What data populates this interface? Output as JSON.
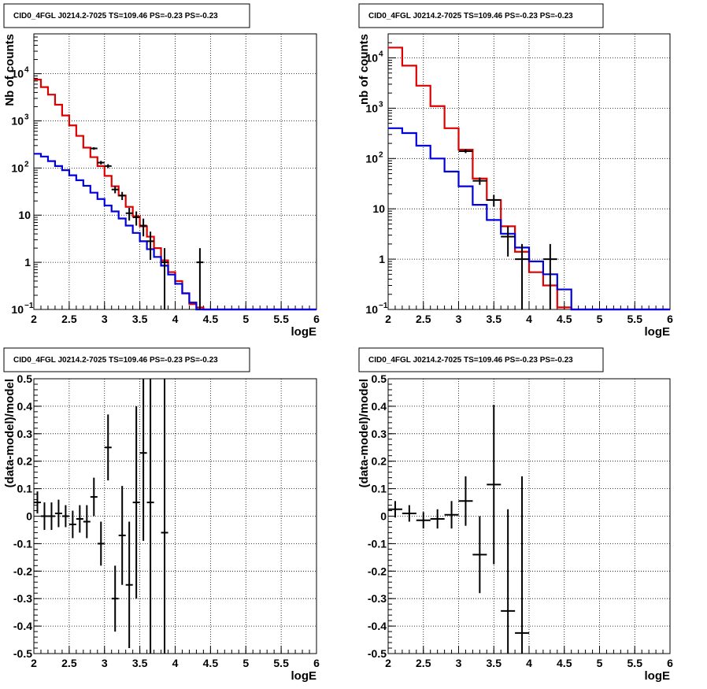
{
  "chart_data": [
    {
      "type": "line",
      "title": "CID0_4FGL J0214.2-7025 TS=109.46 PS=-0.23 PS=-0.23",
      "xlabel": "logE",
      "ylabel": "Nb of counts",
      "xlim": [
        2,
        6
      ],
      "ylim": [
        0.1,
        70000
      ],
      "log_y": true,
      "grid": true,
      "x_ticks": [
        "2",
        "2.5",
        "3",
        "3.5",
        "4",
        "4.5",
        "5",
        "5.5",
        "6"
      ],
      "y_ticks": [
        {
          "v": 0.1,
          "b": "10",
          "e": "−1"
        },
        {
          "v": 1,
          "b": "1",
          "e": ""
        },
        {
          "v": 10,
          "b": "10",
          "e": ""
        },
        {
          "v": 100,
          "b": "10",
          "e": "2"
        },
        {
          "v": 1000,
          "b": "10",
          "e": "3"
        },
        {
          "v": 10000,
          "b": "10",
          "e": "4"
        }
      ],
      "bin_edges": [
        2,
        2.1,
        2.2,
        2.3,
        2.4,
        2.5,
        2.6,
        2.7,
        2.8,
        2.9,
        3,
        3.1,
        3.2,
        3.3,
        3.4,
        3.5,
        3.6,
        3.7,
        3.8,
        3.9,
        4,
        4.1,
        4.2,
        4.3,
        4.4,
        4.5,
        4.6,
        4.7,
        4.8,
        4.9,
        5,
        5.1,
        5.2,
        5.3,
        5.4,
        5.5,
        5.6,
        5.7,
        5.8,
        5.9,
        6
      ],
      "series": [
        {
          "kind": "step",
          "color": "#dd0000",
          "values": [
            7500,
            5200,
            3600,
            2200,
            1300,
            800,
            480,
            270,
            170,
            110,
            68,
            41,
            26,
            15,
            9.5,
            5.8,
            3.5,
            2,
            1.1,
            0.62,
            0.4,
            0.22,
            0.13,
            0.11,
            0.1,
            0.1,
            0.1,
            0.1,
            0.1,
            0.1,
            0.1,
            0.1,
            0.1,
            0.1,
            0.1,
            0.1,
            0.1,
            0.1,
            0.1,
            0.1
          ]
        },
        {
          "kind": "step",
          "color": "#0000dd",
          "values": [
            200,
            175,
            140,
            110,
            90,
            70,
            55,
            42,
            30,
            22,
            16,
            12,
            8.5,
            6,
            4.2,
            2.8,
            1.9,
            1.3,
            0.85,
            0.55,
            0.35,
            0.22,
            0.14,
            0.1,
            0.1,
            0.1,
            0.1,
            0.1,
            0.1,
            0.1,
            0.1,
            0.1,
            0.1,
            0.1,
            0.1,
            0.1,
            0.1,
            0.1,
            0.1,
            0.1
          ]
        },
        {
          "kind": "points",
          "color": "#000000",
          "points": [
            {
              "x": 2.85,
              "y": 260
            },
            {
              "x": 2.95,
              "y": 130
            },
            {
              "x": 3.05,
              "y": 110
            },
            {
              "x": 3.15,
              "y": 35
            },
            {
              "x": 3.25,
              "y": 26
            },
            {
              "x": 3.35,
              "y": 11
            },
            {
              "x": 3.45,
              "y": 9
            },
            {
              "x": 3.55,
              "y": 6
            },
            {
              "x": 3.65,
              "y": 2.8
            },
            {
              "x": 3.85,
              "y": 1
            },
            {
              "x": 4.35,
              "y": 1
            }
          ]
        }
      ]
    },
    {
      "type": "line",
      "title": "CID0_4FGL J0214.2-7025 TS=109.46 PS=-0.23 PS=-0.23",
      "xlabel": "logE",
      "ylabel": "nb of counts",
      "xlim": [
        2,
        6
      ],
      "ylim": [
        0.1,
        30000
      ],
      "log_y": true,
      "grid": true,
      "x_ticks": [
        "2",
        "2.5",
        "3",
        "3.5",
        "4",
        "4.5",
        "5",
        "5.5",
        "6"
      ],
      "y_ticks": [
        {
          "v": 0.1,
          "b": "10",
          "e": "−1"
        },
        {
          "v": 1,
          "b": "1",
          "e": ""
        },
        {
          "v": 10,
          "b": "10",
          "e": ""
        },
        {
          "v": 100,
          "b": "10",
          "e": "2"
        },
        {
          "v": 1000,
          "b": "10",
          "e": "3"
        },
        {
          "v": 10000,
          "b": "10",
          "e": "4"
        }
      ],
      "bin_edges": [
        2,
        2.2,
        2.4,
        2.6,
        2.8,
        3,
        3.2,
        3.4,
        3.6,
        3.8,
        4,
        4.2,
        4.4,
        4.6,
        4.8,
        5,
        5.2,
        5.4,
        5.6,
        5.8,
        6
      ],
      "series": [
        {
          "kind": "step",
          "color": "#dd0000",
          "values": [
            16000,
            7000,
            2800,
            1100,
            400,
            150,
            40,
            15,
            4.5,
            1.4,
            0.55,
            0.3,
            0.11,
            0.1,
            0.1,
            0.1,
            0.1,
            0.1,
            0.1,
            0.1
          ]
        },
        {
          "kind": "step",
          "color": "#0000dd",
          "values": [
            400,
            320,
            180,
            100,
            55,
            28,
            12,
            6,
            3.2,
            1.7,
            0.9,
            0.5,
            0.25,
            0.1,
            0.1,
            0.1,
            0.1,
            0.1,
            0.1,
            0.1
          ]
        },
        {
          "kind": "points",
          "color": "#000000",
          "points": [
            {
              "x": 3.1,
              "y": 140
            },
            {
              "x": 3.3,
              "y": 36
            },
            {
              "x": 3.5,
              "y": 15
            },
            {
              "x": 3.7,
              "y": 2.8
            },
            {
              "x": 3.9,
              "y": 1
            },
            {
              "x": 4.3,
              "y": 1
            }
          ]
        }
      ]
    },
    {
      "type": "scatter",
      "title": "CID0_4FGL J0214.2-7025 TS=109.46 PS=-0.23 PS=-0.23",
      "xlabel": "logE",
      "ylabel": "(data-model)/model",
      "xlim": [
        2,
        6
      ],
      "ylim": [
        -0.5,
        0.5
      ],
      "log_y": false,
      "grid": true,
      "x_ticks": [
        "2",
        "2.5",
        "3",
        "3.5",
        "4",
        "4.5",
        "5",
        "5.5",
        "6"
      ],
      "y_ticks": [
        "-0.5",
        "-0.4",
        "-0.3",
        "-0.2",
        "-0.1",
        "0",
        "0.1",
        "0.2",
        "0.3",
        "0.4",
        "0.5"
      ],
      "series": [
        {
          "kind": "errorbars",
          "color": "#000000",
          "points": [
            {
              "x": 2.05,
              "y": 0.05,
              "err": 0.04
            },
            {
              "x": 2.15,
              "y": 0.0,
              "err": 0.05
            },
            {
              "x": 2.25,
              "y": 0.0,
              "err": 0.05
            },
            {
              "x": 2.35,
              "y": 0.01,
              "err": 0.05
            },
            {
              "x": 2.45,
              "y": 0.0,
              "err": 0.04
            },
            {
              "x": 2.55,
              "y": -0.03,
              "err": 0.05
            },
            {
              "x": 2.65,
              "y": -0.01,
              "err": 0.05
            },
            {
              "x": 2.75,
              "y": -0.02,
              "err": 0.06
            },
            {
              "x": 2.85,
              "y": 0.07,
              "err": 0.07
            },
            {
              "x": 2.95,
              "y": -0.1,
              "err": 0.08
            },
            {
              "x": 3.05,
              "y": 0.25,
              "err": 0.12
            },
            {
              "x": 3.15,
              "y": -0.3,
              "err": 0.12
            },
            {
              "x": 3.25,
              "y": -0.07,
              "err": 0.18
            },
            {
              "x": 3.35,
              "y": -0.25,
              "err": 0.23
            },
            {
              "x": 3.45,
              "y": 0.05,
              "err": 0.35
            },
            {
              "x": 3.55,
              "y": 0.23,
              "err": 0.32
            },
            {
              "x": 3.65,
              "y": 0.05,
              "err": 0.6
            },
            {
              "x": 3.85,
              "y": -0.06,
              "err": 0.6
            }
          ]
        }
      ]
    },
    {
      "type": "scatter",
      "title": "CID0_4FGL J0214.2-7025 TS=109.46 PS=-0.23 PS=-0.23",
      "xlabel": "logE",
      "ylabel": "(data-model)/model",
      "xlim": [
        2,
        6
      ],
      "ylim": [
        -0.5,
        0.5
      ],
      "log_y": false,
      "grid": true,
      "x_ticks": [
        "2",
        "2.5",
        "3",
        "3.5",
        "4",
        "4.5",
        "5",
        "5.5",
        "6"
      ],
      "y_ticks": [
        "-0.5",
        "-0.4",
        "-0.3",
        "-0.2",
        "-0.1",
        "0",
        "0.1",
        "0.2",
        "0.3",
        "0.4",
        "0.5"
      ],
      "series": [
        {
          "kind": "errorbars",
          "color": "#000000",
          "points": [
            {
              "x": 2.1,
              "y": 0.025,
              "err": 0.03
            },
            {
              "x": 2.3,
              "y": 0.01,
              "err": 0.03
            },
            {
              "x": 2.5,
              "y": -0.015,
              "err": 0.03
            },
            {
              "x": 2.7,
              "y": -0.01,
              "err": 0.035
            },
            {
              "x": 2.9,
              "y": 0.005,
              "err": 0.05
            },
            {
              "x": 3.1,
              "y": 0.055,
              "err": 0.09
            },
            {
              "x": 3.3,
              "y": -0.14,
              "err": 0.14
            },
            {
              "x": 3.5,
              "y": 0.115,
              "err": 0.29
            },
            {
              "x": 3.7,
              "y": -0.345,
              "err": 0.37
            },
            {
              "x": 3.9,
              "y": -0.425,
              "err": 0.57
            }
          ]
        }
      ]
    }
  ]
}
